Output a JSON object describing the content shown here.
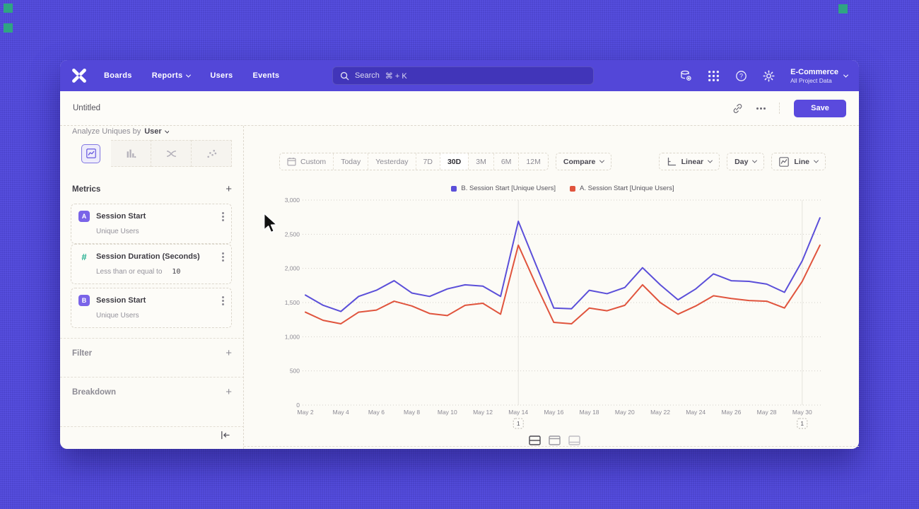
{
  "nav": {
    "items": [
      "Boards",
      "Reports",
      "Users",
      "Events"
    ],
    "search_placeholder": "Search",
    "search_shortcut": "⌘ + K",
    "project_name": "E-Commerce",
    "project_subtitle": "All Project Data"
  },
  "header": {
    "title": "Untitled",
    "save_label": "Save"
  },
  "sidebar": {
    "analyze_label": "Analyze Uniques by",
    "analyze_value": "User",
    "metrics_title": "Metrics",
    "cards": [
      {
        "badge": "A",
        "title": "Session Start",
        "subtitle": "Unique Users"
      },
      {
        "badge": "#",
        "title": "Session Duration (Seconds)",
        "subtitle": "Less than or equal to",
        "value": "10"
      },
      {
        "badge": "B",
        "title": "Session Start",
        "subtitle": "Unique Users"
      }
    ],
    "filter_label": "Filter",
    "breakdown_label": "Breakdown"
  },
  "toolbar": {
    "ranges": [
      "Custom",
      "Today",
      "Yesterday",
      "7D",
      "30D",
      "3M",
      "6M",
      "12M"
    ],
    "selected_range": "30D",
    "compare_label": "Compare",
    "scale_label": "Linear",
    "interval_label": "Day",
    "chart_type_label": "Line"
  },
  "chart_data": {
    "type": "line",
    "x": [
      "May 2",
      "May 3",
      "May 4",
      "May 5",
      "May 6",
      "May 7",
      "May 8",
      "May 9",
      "May 10",
      "May 11",
      "May 12",
      "May 13",
      "May 14",
      "May 15",
      "May 16",
      "May 17",
      "May 18",
      "May 19",
      "May 20",
      "May 21",
      "May 22",
      "May 23",
      "May 24",
      "May 25",
      "May 26",
      "May 27",
      "May 28",
      "May 29",
      "May 30",
      "May 31"
    ],
    "x_tick_labels": [
      "May 2",
      "May 4",
      "May 6",
      "May 8",
      "May 10",
      "May 12",
      "May 14",
      "May 16",
      "May 18",
      "May 20",
      "May 22",
      "May 24",
      "May 26",
      "May 28",
      "May 30"
    ],
    "ylim": [
      0,
      3000
    ],
    "yticks": [
      0,
      500,
      1000,
      1500,
      2000,
      2500,
      3000
    ],
    "grid": "horizontal-dotted",
    "legend_position": "top-center",
    "series": [
      {
        "name": "B. Session Start [Unique Users]",
        "color": "#5b4fd9",
        "values": [
          1610,
          1460,
          1370,
          1590,
          1680,
          1820,
          1640,
          1590,
          1700,
          1760,
          1740,
          1590,
          2690,
          2050,
          1420,
          1410,
          1680,
          1630,
          1720,
          2010,
          1760,
          1540,
          1700,
          1920,
          1820,
          1810,
          1770,
          1650,
          2110,
          2740
        ]
      },
      {
        "name": "A. Session Start [Unique Users]",
        "color": "#e0543d",
        "values": [
          1360,
          1240,
          1190,
          1360,
          1390,
          1520,
          1450,
          1340,
          1310,
          1460,
          1490,
          1330,
          2340,
          1760,
          1210,
          1190,
          1420,
          1380,
          1460,
          1760,
          1500,
          1330,
          1450,
          1600,
          1560,
          1530,
          1520,
          1420,
          1810,
          2340
        ]
      }
    ],
    "annotations": [
      {
        "x": "May 14",
        "label": "1"
      },
      {
        "x": "May 30",
        "label": "1"
      }
    ]
  },
  "colors": {
    "accent": "#5a4add",
    "navbar": "#5347d8",
    "series_b": "#5b4fd9",
    "series_a": "#e0543d",
    "corner_squares": "#2fa483"
  }
}
